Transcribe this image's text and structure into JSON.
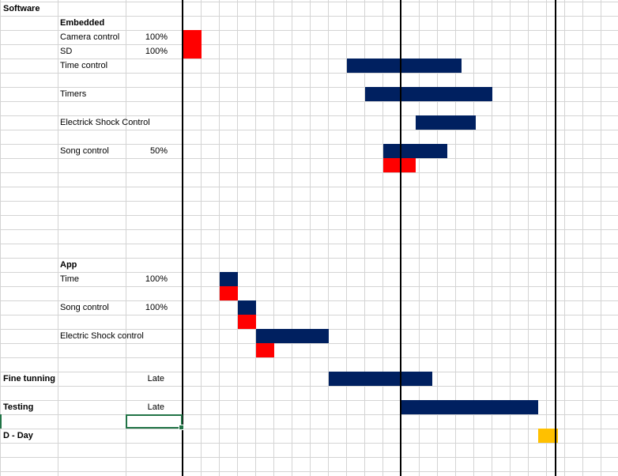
{
  "rows": [
    {
      "label": "Software",
      "indent": 0,
      "bold": true,
      "value": ""
    },
    {
      "label": "Embedded",
      "indent": 1,
      "bold": true,
      "value": ""
    },
    {
      "label": "Camera control",
      "indent": 1,
      "bold": false,
      "value": "100%"
    },
    {
      "label": "SD",
      "indent": 1,
      "bold": false,
      "value": "100%"
    },
    {
      "label": "Time control",
      "indent": 1,
      "bold": false,
      "value": ""
    },
    {
      "label": "Timers",
      "indent": 1,
      "bold": false,
      "value": ""
    },
    {
      "label": "Electrick Shock Control",
      "indent": 1,
      "bold": false,
      "value": ""
    },
    {
      "label": "Song control",
      "indent": 1,
      "bold": false,
      "value": "50%"
    },
    {
      "label": "App",
      "indent": 1,
      "bold": true,
      "value": ""
    },
    {
      "label": "Time",
      "indent": 1,
      "bold": false,
      "value": "100%"
    },
    {
      "label": "Song control",
      "indent": 1,
      "bold": false,
      "value": "100%"
    },
    {
      "label": "Electric Shock control",
      "indent": 1,
      "bold": false,
      "value": ""
    },
    {
      "label": "Fine tunning",
      "indent": 0,
      "bold": true,
      "value": "Late"
    },
    {
      "label": "Testing",
      "indent": 0,
      "bold": true,
      "value": "Late"
    },
    {
      "label": "D - Day",
      "indent": 0,
      "bold": true,
      "value": ""
    }
  ],
  "task_rows": [
    0,
    1,
    2,
    3,
    4,
    6,
    8,
    10,
    18,
    19,
    21,
    23,
    26,
    28,
    30
  ],
  "bars": [
    {
      "row": 2,
      "start": 0,
      "span": 1,
      "color": "#ff0000"
    },
    {
      "row": 3,
      "start": 0,
      "span": 1,
      "color": "#ff0000"
    },
    {
      "row": 4,
      "start": 9,
      "span": 6.3,
      "color": "#002060"
    },
    {
      "row": 6,
      "start": 10,
      "span": 7,
      "color": "#002060"
    },
    {
      "row": 8,
      "start": 12.8,
      "span": 3.3,
      "color": "#002060"
    },
    {
      "row": 10,
      "start": 11,
      "span": 3.5,
      "color": "#002060"
    },
    {
      "row": 11,
      "start": 11,
      "span": 1.8,
      "color": "#ff0000"
    },
    {
      "row": 19,
      "start": 2,
      "span": 1,
      "color": "#002060"
    },
    {
      "row": 20,
      "start": 2,
      "span": 1,
      "color": "#ff0000"
    },
    {
      "row": 21,
      "start": 3,
      "span": 1,
      "color": "#002060"
    },
    {
      "row": 22,
      "start": 3,
      "span": 1,
      "color": "#ff0000"
    },
    {
      "row": 23,
      "start": 4,
      "span": 4,
      "color": "#002060"
    },
    {
      "row": 24,
      "start": 4,
      "span": 1,
      "color": "#ff0000"
    },
    {
      "row": 26,
      "start": 8,
      "span": 5.7,
      "color": "#002060"
    },
    {
      "row": 28,
      "start": 12,
      "span": 7.5,
      "color": "#002060"
    },
    {
      "row": 30,
      "start": 19.5,
      "span": 1.1,
      "color": "#ffc000"
    }
  ],
  "milestones": [
    0,
    12,
    20.5
  ],
  "colors": {
    "grid": "#d4d4d4",
    "planned": "#002060",
    "progress": "#ff0000",
    "deadline": "#ffc000",
    "selection": "#217346"
  }
}
